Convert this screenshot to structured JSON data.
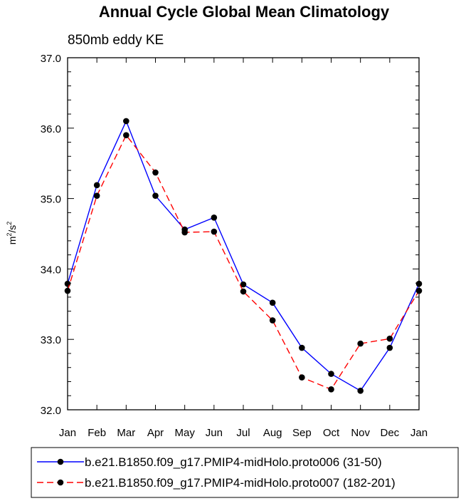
{
  "chart_data": {
    "type": "line",
    "title": "Annual Cycle Global Mean Climatology",
    "subtitle": "850mb eddy KE",
    "ylabel": {
      "base": "m",
      "exp1": "2",
      "mid": "/s",
      "exp2": "2"
    },
    "categories": [
      "Jan",
      "Feb",
      "Mar",
      "Apr",
      "May",
      "Jun",
      "Jul",
      "Aug",
      "Sep",
      "Oct",
      "Nov",
      "Dec",
      "Jan"
    ],
    "ylim": [
      32.0,
      37.0
    ],
    "yticks": [
      "32.0",
      "33.0",
      "34.0",
      "35.0",
      "36.0",
      "37.0"
    ],
    "series": [
      {
        "name": "b.e21.B1850.f09_g17.PMIP4-midHolo.proto006 (31-50)",
        "color": "#0000ff",
        "dash": "solid",
        "values": [
          33.79,
          35.19,
          36.1,
          35.04,
          34.56,
          34.73,
          33.78,
          33.52,
          32.88,
          32.51,
          32.27,
          32.88,
          33.79
        ]
      },
      {
        "name": "b.e21.B1850.f09_g17.PMIP4-midHolo.proto007 (182-201)",
        "color": "#ff0000",
        "dash": "dashed",
        "values": [
          33.69,
          35.04,
          35.9,
          35.37,
          34.52,
          34.53,
          33.68,
          33.27,
          32.46,
          32.29,
          32.94,
          33.01,
          33.69
        ]
      }
    ]
  }
}
